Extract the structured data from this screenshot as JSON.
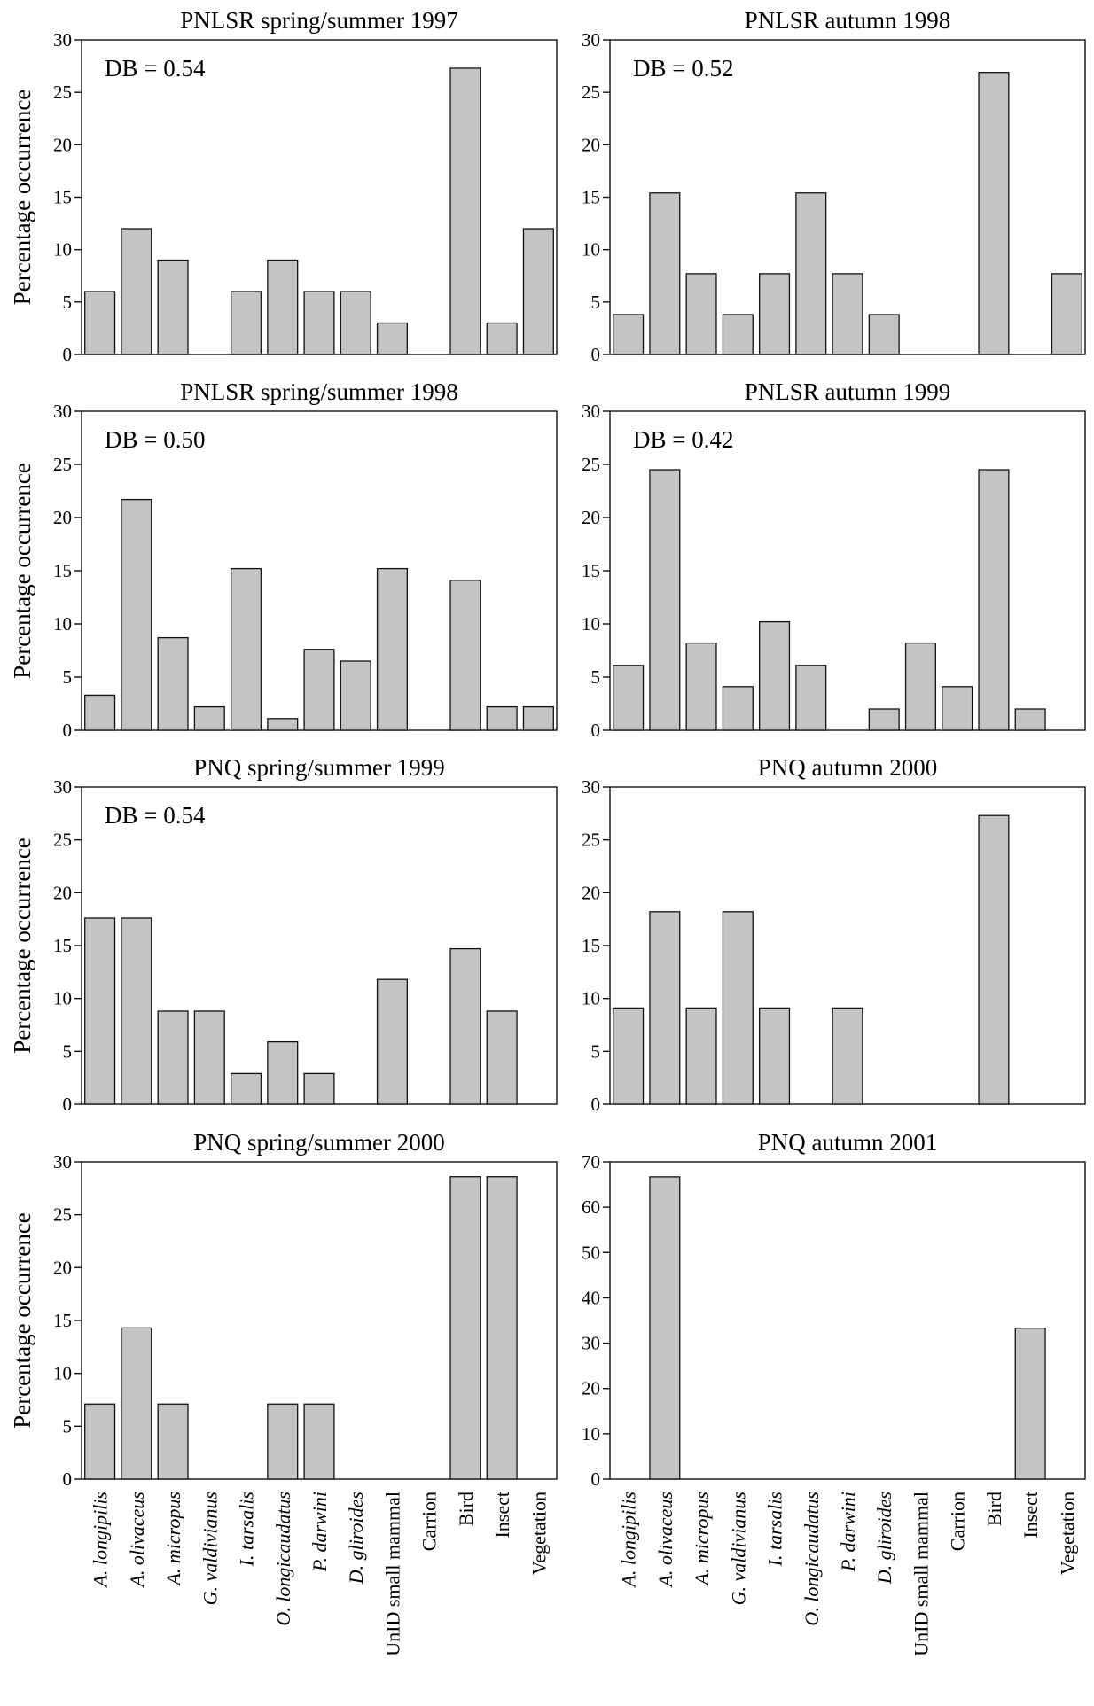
{
  "figure": {
    "y_axis_label": "Percentage occurrence"
  },
  "chart_data": [
    {
      "type": "bar",
      "title": "PNLSR spring/summer 1997",
      "annotation": "DB = 0.54",
      "ylabel": "Percentage occurrence",
      "ylim": [
        0,
        30
      ],
      "yticks": [
        0,
        5,
        10,
        15,
        20,
        25,
        30
      ],
      "grid": false,
      "legend": "none",
      "bar_color": "#c4c4c4",
      "categories": [
        "A. longipilis",
        "A. olivaceus",
        "A. micropus",
        "G. valdivianus",
        "I. tarsalis",
        "O. longicaudatus",
        "P. darwini",
        "D. gliroides",
        "UnID small mammal",
        "Carrion",
        "Bird",
        "Insect",
        "Vegetation"
      ],
      "values": [
        6,
        12,
        9,
        0,
        6,
        9,
        6,
        6,
        3,
        0,
        27.3,
        3,
        12
      ]
    },
    {
      "type": "bar",
      "title": "PNLSR autumn 1998",
      "annotation": "DB = 0.52",
      "ylim": [
        0,
        30
      ],
      "yticks": [
        0,
        5,
        10,
        15,
        20,
        25,
        30
      ],
      "grid": false,
      "legend": "none",
      "bar_color": "#c4c4c4",
      "categories": [
        "A. longipilis",
        "A. olivaceus",
        "A. micropus",
        "G. valdivianus",
        "I. tarsalis",
        "O. longicaudatus",
        "P. darwini",
        "D. gliroides",
        "UnID small mammal",
        "Carrion",
        "Bird",
        "Insect",
        "Vegetation"
      ],
      "values": [
        3.8,
        15.4,
        7.7,
        3.8,
        7.7,
        15.4,
        7.7,
        3.8,
        0,
        0,
        26.9,
        0,
        7.7
      ]
    },
    {
      "type": "bar",
      "title": "PNLSR spring/summer 1998",
      "annotation": "DB = 0.50",
      "ylabel": "Percentage occurrence",
      "ylim": [
        0,
        30
      ],
      "yticks": [
        0,
        5,
        10,
        15,
        20,
        25,
        30
      ],
      "grid": false,
      "legend": "none",
      "bar_color": "#c4c4c4",
      "categories": [
        "A. longipilis",
        "A. olivaceus",
        "A. micropus",
        "G. valdivianus",
        "I. tarsalis",
        "O. longicaudatus",
        "P. darwini",
        "D. gliroides",
        "UnID small mammal",
        "Carrion",
        "Bird",
        "Insect",
        "Vegetation"
      ],
      "values": [
        3.3,
        21.7,
        8.7,
        2.2,
        15.2,
        1.1,
        7.6,
        6.5,
        15.2,
        0,
        14.1,
        2.2,
        2.2
      ]
    },
    {
      "type": "bar",
      "title": "PNLSR autumn 1999",
      "annotation": "DB = 0.42",
      "ylim": [
        0,
        30
      ],
      "yticks": [
        0,
        5,
        10,
        15,
        20,
        25,
        30
      ],
      "grid": false,
      "legend": "none",
      "bar_color": "#c4c4c4",
      "categories": [
        "A. longipilis",
        "A. olivaceus",
        "A. micropus",
        "G. valdivianus",
        "I. tarsalis",
        "O. longicaudatus",
        "P. darwini",
        "D. gliroides",
        "UnID small mammal",
        "Carrion",
        "Bird",
        "Insect",
        "Vegetation"
      ],
      "values": [
        6.1,
        24.5,
        8.2,
        4.1,
        10.2,
        6.1,
        0,
        2,
        8.2,
        4.1,
        24.5,
        2,
        0
      ]
    },
    {
      "type": "bar",
      "title": "PNQ spring/summer 1999",
      "annotation": "DB = 0.54",
      "ylabel": "Percentage occurrence",
      "ylim": [
        0,
        30
      ],
      "yticks": [
        0,
        5,
        10,
        15,
        20,
        25,
        30
      ],
      "grid": false,
      "legend": "none",
      "bar_color": "#c4c4c4",
      "categories": [
        "A. longipilis",
        "A. olivaceus",
        "A. micropus",
        "G. valdivianus",
        "I. tarsalis",
        "O. longicaudatus",
        "P. darwini",
        "D. gliroides",
        "UnID small mammal",
        "Carrion",
        "Bird",
        "Insect",
        "Vegetation"
      ],
      "values": [
        17.6,
        17.6,
        8.8,
        8.8,
        2.9,
        5.9,
        2.9,
        0,
        11.8,
        0,
        14.7,
        8.8,
        0
      ]
    },
    {
      "type": "bar",
      "title": "PNQ autumn 2000",
      "annotation": "",
      "ylim": [
        0,
        30
      ],
      "yticks": [
        0,
        5,
        10,
        15,
        20,
        25,
        30
      ],
      "grid": false,
      "legend": "none",
      "bar_color": "#c4c4c4",
      "categories": [
        "A. longipilis",
        "A. olivaceus",
        "A. micropus",
        "G. valdivianus",
        "I. tarsalis",
        "O. longicaudatus",
        "P. darwini",
        "D. gliroides",
        "UnID small mammal",
        "Carrion",
        "Bird",
        "Insect",
        "Vegetation"
      ],
      "values": [
        9.1,
        18.2,
        9.1,
        18.2,
        9.1,
        0,
        9.1,
        0,
        0,
        0,
        27.3,
        0,
        0
      ]
    },
    {
      "type": "bar",
      "title": "PNQ spring/summer 2000",
      "annotation": "",
      "ylabel": "Percentage occurrence",
      "ylim": [
        0,
        30
      ],
      "yticks": [
        0,
        5,
        10,
        15,
        20,
        25,
        30
      ],
      "grid": false,
      "legend": "none",
      "bar_color": "#c4c4c4",
      "categories": [
        "A. longipilis",
        "A. olivaceus",
        "A. micropus",
        "G. valdivianus",
        "I. tarsalis",
        "O. longicaudatus",
        "P. darwini",
        "D. gliroides",
        "UnID small mammal",
        "Carrion",
        "Bird",
        "Insect",
        "Vegetation"
      ],
      "values": [
        7.1,
        14.3,
        7.1,
        0,
        0,
        7.1,
        7.1,
        0,
        0,
        0,
        28.6,
        28.6,
        0
      ]
    },
    {
      "type": "bar",
      "title": "PNQ autumn 2001",
      "annotation": "",
      "ylim": [
        0,
        70
      ],
      "yticks": [
        0,
        10,
        20,
        30,
        40,
        50,
        60,
        70
      ],
      "grid": false,
      "legend": "none",
      "bar_color": "#c4c4c4",
      "categories": [
        "A. longipilis",
        "A. olivaceus",
        "A. micropus",
        "G. valdivianus",
        "I. tarsalis",
        "O. longicaudatus",
        "P. darwini",
        "D. gliroides",
        "UnID small mammal",
        "Carrion",
        "Bird",
        "Insect",
        "Vegetation"
      ],
      "values": [
        0,
        66.7,
        0,
        0,
        0,
        0,
        0,
        0,
        0,
        0,
        0,
        33.3,
        0
      ]
    }
  ]
}
